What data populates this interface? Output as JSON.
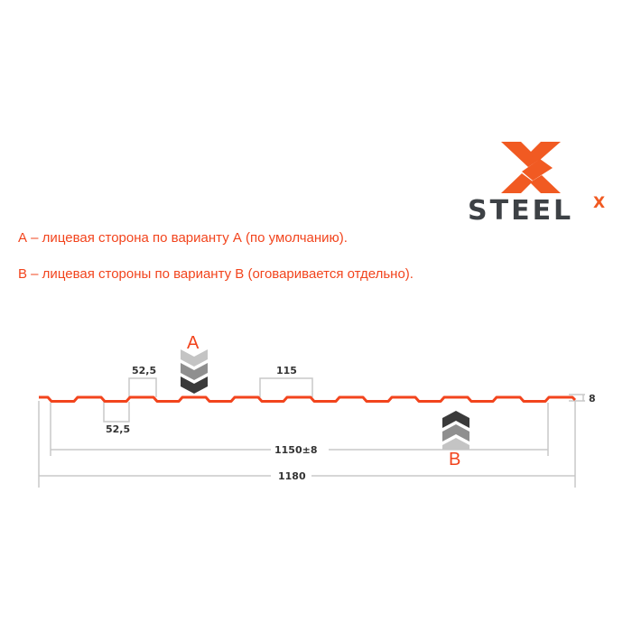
{
  "logo": {
    "brand": "STEELX",
    "text": "STEEL",
    "superscript": "X",
    "colors": {
      "orange": "#f15a22",
      "dark": "#3d4145"
    }
  },
  "notes": [
    "А – лицевая сторона по варианту А (по умолчанию).",
    "В – лицевая стороны по варианту В (оговаривается отдельно)."
  ],
  "profile_color": "#f2441d",
  "dimensions": {
    "top_rib": "52,5",
    "bottom_rib": "52,5",
    "pitch": "115",
    "height": "8",
    "working_width": "1150±8",
    "total_width": "1180"
  },
  "sides": {
    "a": "A",
    "b": "B"
  }
}
